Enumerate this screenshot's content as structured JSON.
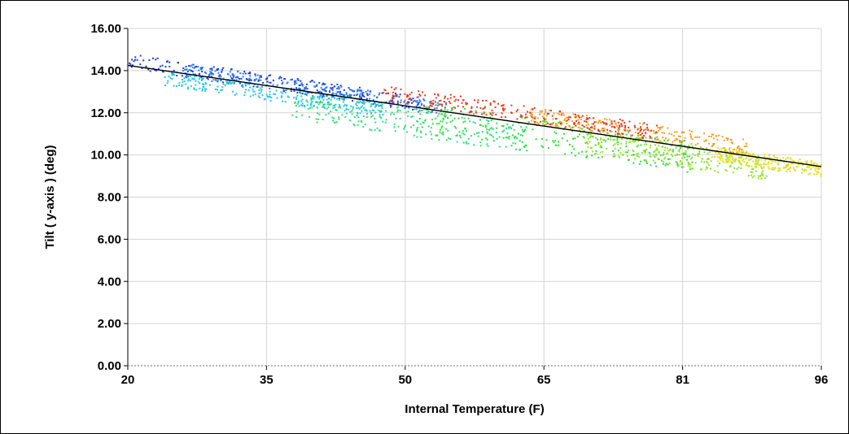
{
  "chart_data": {
    "type": "scatter",
    "title": "",
    "xlabel": "Internal Temperature (F)",
    "ylabel": "Tilt ( y-axis ) (deg)",
    "x_ticks": [
      "20",
      "35",
      "50",
      "65",
      "81",
      "96"
    ],
    "y_ticks": [
      "0.00",
      "2.00",
      "4.00",
      "6.00",
      "8.00",
      "10.00",
      "12.00",
      "14.00",
      "16.00"
    ],
    "xlim": [
      20,
      96
    ],
    "ylim": [
      0,
      16
    ],
    "grid": true,
    "legend": "none",
    "baseline": {
      "y": 0,
      "style": "dotted",
      "color": "#888888"
    },
    "trend_line": {
      "points": [
        [
          20,
          14.25
        ],
        [
          96,
          9.45
        ]
      ],
      "color": "#000000"
    },
    "series": [
      {
        "color": "#1a3fd6",
        "x_range": [
          20,
          52
        ],
        "y_offset": [
          -0.15,
          0.55
        ]
      },
      {
        "color": "#2f7ef0",
        "x_range": [
          26,
          55
        ],
        "y_offset": [
          -0.2,
          0.5
        ]
      },
      {
        "color": "#22c8e6",
        "x_range": [
          24,
          48
        ],
        "y_offset": [
          -0.7,
          0.05
        ]
      },
      {
        "color": "#2ee07a",
        "x_range": [
          38,
          64
        ],
        "y_offset": [
          -1.4,
          -0.1
        ]
      },
      {
        "color": "#30e030",
        "x_range": [
          52,
          82
        ],
        "y_offset": [
          -1.2,
          0.3
        ]
      },
      {
        "color": "#8ee62a",
        "x_range": [
          70,
          90
        ],
        "y_offset": [
          -1.0,
          0.1
        ]
      },
      {
        "color": "#e0e020",
        "x_range": [
          84,
          96
        ],
        "y_offset": [
          -0.5,
          0.2
        ]
      },
      {
        "color": "#f2a020",
        "x_range": [
          64,
          88
        ],
        "y_offset": [
          0.0,
          0.8
        ]
      },
      {
        "color": "#e83a20",
        "x_range": [
          48,
          78
        ],
        "y_offset": [
          0.1,
          0.85
        ]
      }
    ]
  }
}
